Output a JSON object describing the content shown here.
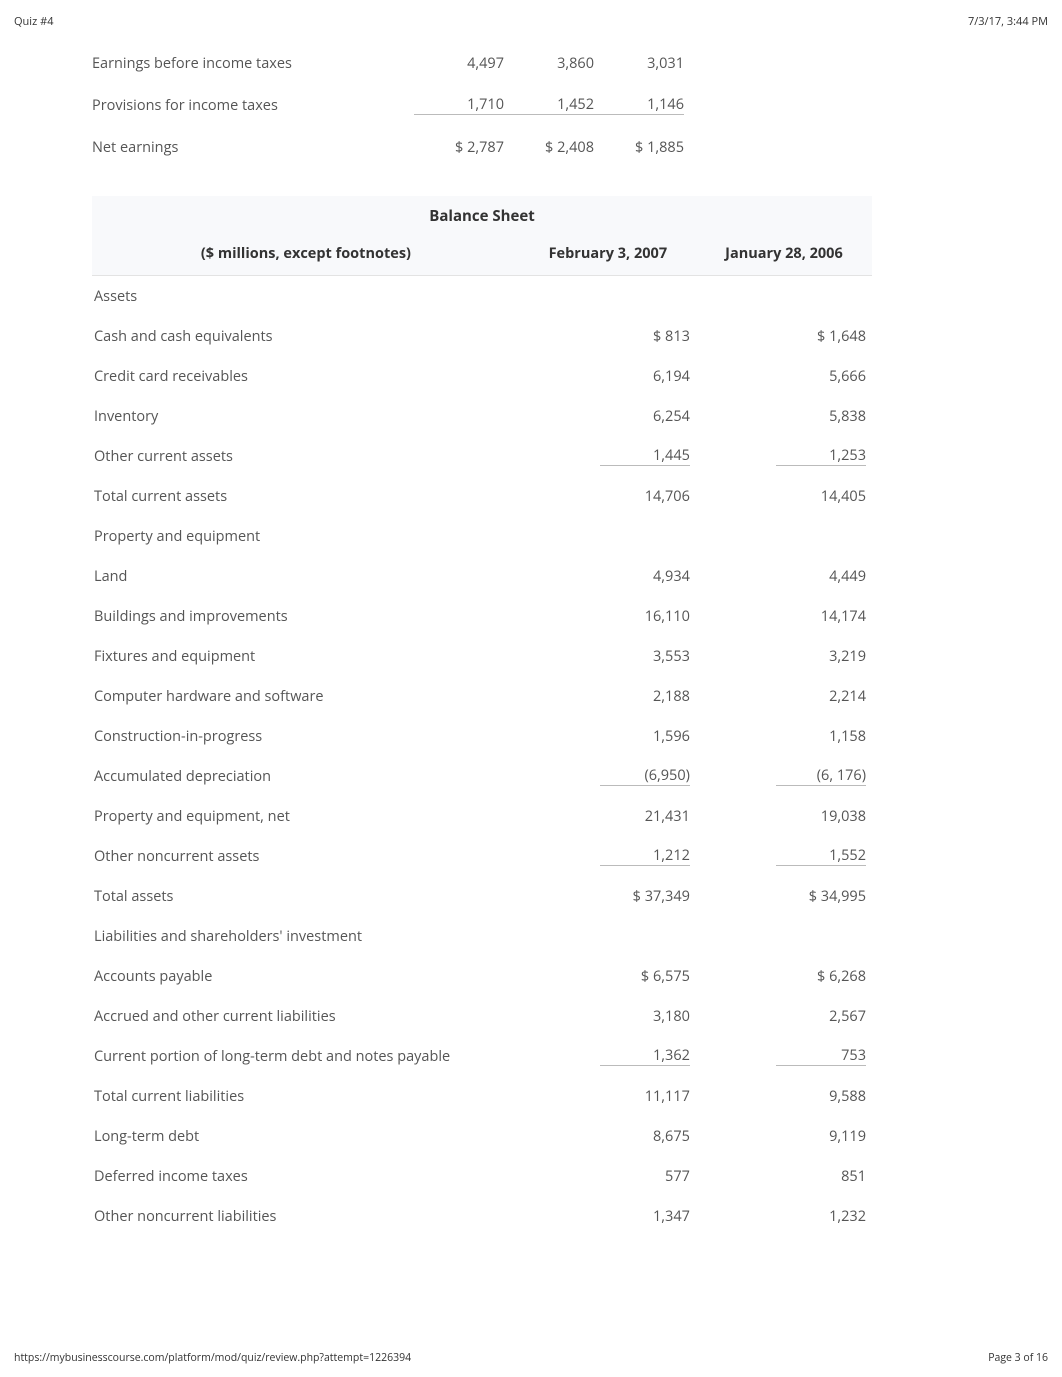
{
  "header": {
    "left": "Quiz #4",
    "right": "7/3/17, 3:44 PM"
  },
  "footer": {
    "left": "https://mybusinesscourse.com/platform/mod/quiz/review.php?attempt=1226394",
    "right": "Page 3 of 16"
  },
  "income": {
    "rows": [
      {
        "label": "Earnings before income taxes",
        "c1": "4,497",
        "c2": "3,860",
        "c3": "3,031",
        "underline": false
      },
      {
        "label": "Provisions for income taxes",
        "c1": "1,710",
        "c2": "1,452",
        "c3": "1,146",
        "underline": true
      },
      {
        "label": "Net earnings",
        "c1": "$ 2,787",
        "c2": "$ 2,408",
        "c3": "$ 1,885",
        "underline": false
      }
    ]
  },
  "balance": {
    "title": "Balance Sheet",
    "colhead": {
      "left": "($ millions, except footnotes)",
      "c1": "February 3, 2007",
      "c2": "January 28, 2006"
    },
    "rows": [
      {
        "label": "Assets",
        "c1": "",
        "c2": "",
        "section": true
      },
      {
        "label": "Cash and cash equivalents",
        "c1": "$ 813",
        "c2": "$ 1,648"
      },
      {
        "label": "Credit card receivables",
        "c1": "6,194",
        "c2": "5,666"
      },
      {
        "label": "Inventory",
        "c1": "6,254",
        "c2": "5,838"
      },
      {
        "label": "Other current assets",
        "c1": "1,445",
        "c2": "1,253",
        "underline": true
      },
      {
        "label": "Total current assets",
        "c1": "14,706",
        "c2": "14,405"
      },
      {
        "label": "Property and equipment",
        "c1": "",
        "c2": "",
        "section": true
      },
      {
        "label": "Land",
        "c1": "4,934",
        "c2": "4,449"
      },
      {
        "label": "Buildings and improvements",
        "c1": "16,110",
        "c2": "14,174"
      },
      {
        "label": "Fixtures and equipment",
        "c1": "3,553",
        "c2": "3,219"
      },
      {
        "label": "Computer hardware and software",
        "c1": "2,188",
        "c2": "2,214"
      },
      {
        "label": "Construction-in-progress",
        "c1": "1,596",
        "c2": "1,158"
      },
      {
        "label": "Accumulated depreciation",
        "c1": "(6,950)",
        "c2": "(6, 176)",
        "underline": true
      },
      {
        "label": "Property and equipment, net",
        "c1": "21,431",
        "c2": "19,038"
      },
      {
        "label": "Other noncurrent assets",
        "c1": "1,212",
        "c2": "1,552",
        "underline": true
      },
      {
        "label": "Total assets",
        "c1": "$ 37,349",
        "c2": "$ 34,995"
      },
      {
        "label": "Liabilities and shareholders' investment",
        "c1": "",
        "c2": "",
        "section": true
      },
      {
        "label": "Accounts payable",
        "c1": "$ 6,575",
        "c2": "$ 6,268"
      },
      {
        "label": "Accrued and other current liabilities",
        "c1": "3,180",
        "c2": "2,567"
      },
      {
        "label": "Current portion of long-term debt and notes payable",
        "c1": "1,362",
        "c2": "753",
        "underline": true
      },
      {
        "label": "Total current liabilities",
        "c1": "11,117",
        "c2": "9,588"
      },
      {
        "label": "Long-term debt",
        "c1": "8,675",
        "c2": "9,119"
      },
      {
        "label": "Deferred income taxes",
        "c1": "577",
        "c2": "851"
      },
      {
        "label": "Other noncurrent liabilities",
        "c1": "1,347",
        "c2": "1,232"
      }
    ]
  }
}
